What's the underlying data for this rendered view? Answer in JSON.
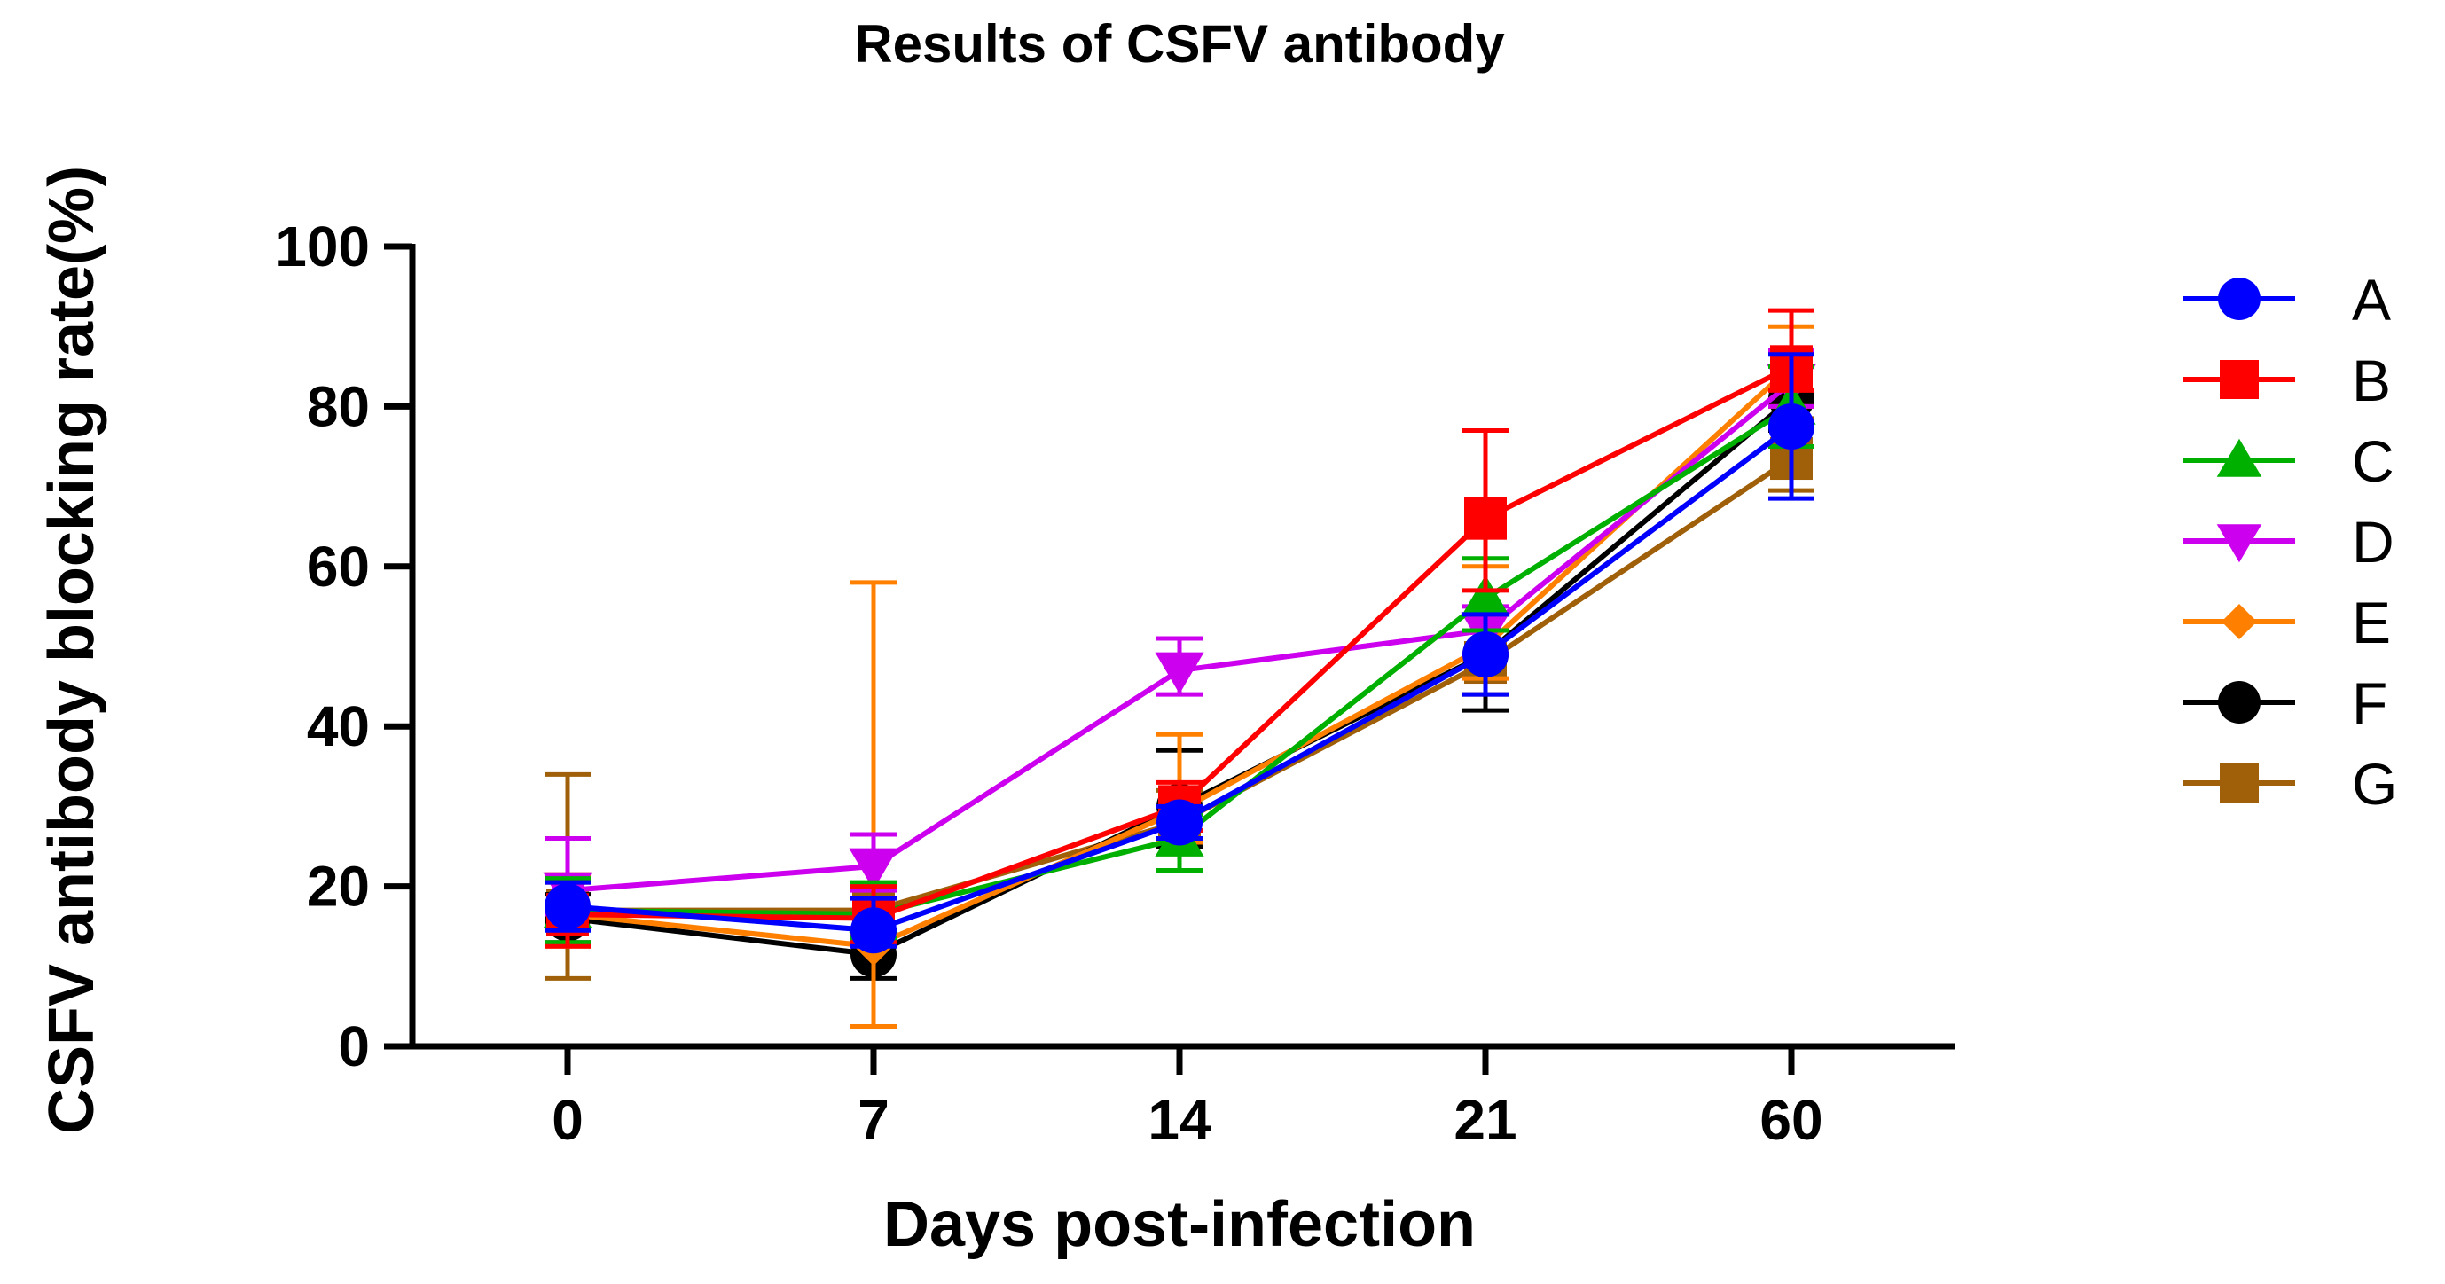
{
  "chart_data": {
    "type": "line",
    "title": "Results of CSFV antibody",
    "xlabel": "Days post-infection",
    "ylabel": "CSFV antibody blocking rate(%)",
    "categories": [
      "0",
      "7",
      "14",
      "21",
      "60"
    ],
    "ylim": [
      0,
      100
    ],
    "yticks": [
      "0",
      "20",
      "40",
      "60",
      "80",
      "100"
    ],
    "legend_position": "right",
    "grid": false,
    "series": [
      {
        "name": "A",
        "color": "#0000ff",
        "marker": "circle",
        "values": [
          17.5,
          14.5,
          28,
          49,
          77.5
        ],
        "err_up": [
          3,
          4,
          2,
          5,
          9
        ],
        "err_down": [
          3,
          2,
          2,
          5,
          9
        ]
      },
      {
        "name": "B",
        "color": "#ff0000",
        "marker": "square",
        "values": [
          16.5,
          16,
          30,
          66,
          85
        ],
        "err_up": [
          4,
          4,
          3,
          11,
          7
        ],
        "err_down": [
          4,
          3,
          3,
          9,
          3
        ]
      },
      {
        "name": "C",
        "color": "#00b000",
        "marker": "triangle-up",
        "values": [
          17,
          16.5,
          26,
          56,
          80
        ],
        "err_up": [
          4,
          4,
          3,
          5,
          5
        ],
        "err_down": [
          4,
          3,
          4,
          4,
          5
        ]
      },
      {
        "name": "D",
        "color": "#cc00ee",
        "marker": "triangle-down",
        "values": [
          19.5,
          22.5,
          47,
          52,
          83
        ],
        "err_up": [
          6.5,
          4,
          4,
          3,
          4
        ],
        "err_down": [
          3,
          3,
          3,
          3,
          3
        ]
      },
      {
        "name": "E",
        "color": "#ff8000",
        "marker": "diamond",
        "values": [
          16.5,
          12.5,
          29.5,
          50,
          85
        ],
        "err_up": [
          5,
          45.5,
          9.5,
          10,
          5
        ],
        "err_down": [
          4,
          10,
          4,
          4,
          5
        ]
      },
      {
        "name": "F",
        "color": "#000000",
        "marker": "circle",
        "values": [
          16,
          11.5,
          30,
          49,
          81
        ],
        "err_up": [
          3,
          3,
          7,
          5,
          4
        ],
        "err_down": [
          3,
          3,
          5,
          7,
          4
        ]
      },
      {
        "name": "G",
        "color": "#a0600a",
        "marker": "square",
        "values": [
          17,
          17,
          28,
          48,
          73.5
        ],
        "err_up": [
          17,
          3,
          4,
          4,
          5
        ],
        "err_down": [
          8.5,
          3,
          3,
          4,
          4
        ]
      }
    ]
  }
}
